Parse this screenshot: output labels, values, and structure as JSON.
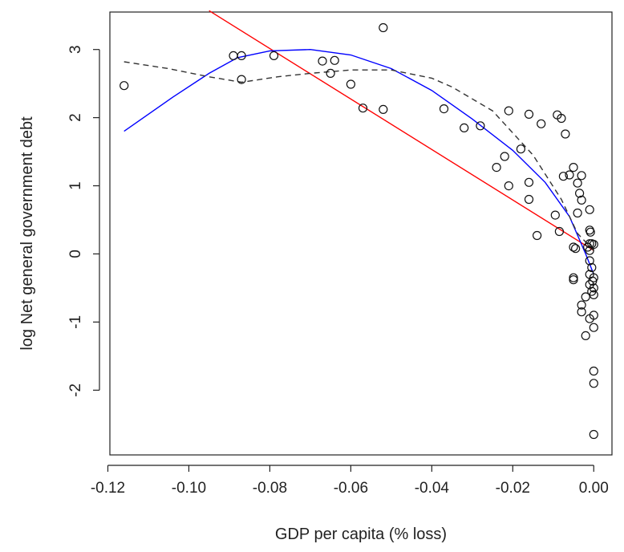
{
  "chart_data": {
    "type": "scatter",
    "title": "",
    "xlabel": "GDP per capita (% loss)",
    "ylabel": "log Net general government debt",
    "xlim": [
      -0.1195,
      0.0045
    ],
    "ylim": [
      -2.95,
      3.55
    ],
    "x_ticks": [
      {
        "value": -0.12,
        "label": "-0.12"
      },
      {
        "value": -0.1,
        "label": "-0.10"
      },
      {
        "value": -0.08,
        "label": "-0.08"
      },
      {
        "value": -0.06,
        "label": "-0.06"
      },
      {
        "value": -0.04,
        "label": "-0.04"
      },
      {
        "value": -0.02,
        "label": "-0.02"
      },
      {
        "value": 0.0,
        "label": "0.00"
      }
    ],
    "y_ticks": [
      {
        "value": -2,
        "label": "-2"
      },
      {
        "value": -1,
        "label": "-1"
      },
      {
        "value": 0,
        "label": "0"
      },
      {
        "value": 1,
        "label": "1"
      },
      {
        "value": 2,
        "label": "2"
      },
      {
        "value": 3,
        "label": "3"
      }
    ],
    "grid": false,
    "legend": "none",
    "points": [
      {
        "x": -0.116,
        "y": 2.47
      },
      {
        "x": -0.089,
        "y": 2.91
      },
      {
        "x": -0.087,
        "y": 2.91
      },
      {
        "x": -0.087,
        "y": 2.56
      },
      {
        "x": -0.079,
        "y": 2.91
      },
      {
        "x": -0.067,
        "y": 2.83
      },
      {
        "x": -0.064,
        "y": 2.84
      },
      {
        "x": -0.065,
        "y": 2.65
      },
      {
        "x": -0.06,
        "y": 2.49
      },
      {
        "x": -0.057,
        "y": 2.14
      },
      {
        "x": -0.052,
        "y": 3.32
      },
      {
        "x": -0.052,
        "y": 2.12
      },
      {
        "x": -0.037,
        "y": 2.13
      },
      {
        "x": -0.032,
        "y": 1.85
      },
      {
        "x": -0.028,
        "y": 1.88
      },
      {
        "x": -0.024,
        "y": 1.27
      },
      {
        "x": -0.022,
        "y": 1.43
      },
      {
        "x": -0.021,
        "y": 2.1
      },
      {
        "x": -0.021,
        "y": 1.0
      },
      {
        "x": -0.018,
        "y": 1.54
      },
      {
        "x": -0.016,
        "y": 2.05
      },
      {
        "x": -0.016,
        "y": 1.05
      },
      {
        "x": -0.016,
        "y": 0.8
      },
      {
        "x": -0.014,
        "y": 0.27
      },
      {
        "x": -0.013,
        "y": 1.91
      },
      {
        "x": -0.0095,
        "y": 0.57
      },
      {
        "x": -0.009,
        "y": 2.04
      },
      {
        "x": -0.0085,
        "y": 0.33
      },
      {
        "x": -0.008,
        "y": 1.99
      },
      {
        "x": -0.0075,
        "y": 1.14
      },
      {
        "x": -0.007,
        "y": 1.76
      },
      {
        "x": -0.006,
        "y": 1.16
      },
      {
        "x": -0.005,
        "y": 1.27
      },
      {
        "x": -0.005,
        "y": 0.1
      },
      {
        "x": -0.005,
        "y": -0.35
      },
      {
        "x": -0.005,
        "y": -0.38
      },
      {
        "x": -0.0045,
        "y": 0.08
      },
      {
        "x": -0.004,
        "y": 1.04
      },
      {
        "x": -0.004,
        "y": 0.6
      },
      {
        "x": -0.0035,
        "y": 0.89
      },
      {
        "x": -0.003,
        "y": 1.15
      },
      {
        "x": -0.003,
        "y": 0.79
      },
      {
        "x": -0.003,
        "y": -0.75
      },
      {
        "x": -0.003,
        "y": -0.85
      },
      {
        "x": -0.002,
        "y": -0.63
      },
      {
        "x": -0.002,
        "y": -1.2
      },
      {
        "x": -0.0015,
        "y": 0.1
      },
      {
        "x": -0.001,
        "y": 0.65
      },
      {
        "x": -0.001,
        "y": 0.35
      },
      {
        "x": -0.001,
        "y": 0.15
      },
      {
        "x": -0.001,
        "y": 0.05
      },
      {
        "x": -0.001,
        "y": -0.1
      },
      {
        "x": -0.001,
        "y": -0.3
      },
      {
        "x": -0.001,
        "y": -0.45
      },
      {
        "x": -0.001,
        "y": -0.95
      },
      {
        "x": -0.0008,
        "y": 0.32
      },
      {
        "x": -0.0005,
        "y": 0.15
      },
      {
        "x": -0.0005,
        "y": -0.2
      },
      {
        "x": -0.0005,
        "y": -0.55
      },
      {
        "x": -0.0003,
        "y": -0.4
      },
      {
        "x": 0.0,
        "y": 0.14
      },
      {
        "x": 0.0,
        "y": -0.35
      },
      {
        "x": 0.0,
        "y": -0.5
      },
      {
        "x": 0.0,
        "y": -0.6
      },
      {
        "x": 0.0,
        "y": -0.9
      },
      {
        "x": 0.0,
        "y": -1.08
      },
      {
        "x": 0.0,
        "y": -1.72
      },
      {
        "x": 0.0,
        "y": -1.9
      },
      {
        "x": 0.0,
        "y": -2.65
      }
    ],
    "lines": [
      {
        "style": "solid",
        "color": "#ff0000",
        "points": [
          {
            "x": -0.095,
            "y": 3.57
          },
          {
            "x": 0.0,
            "y": 0.05
          }
        ]
      },
      {
        "style": "solid",
        "color": "#0000ff",
        "points": [
          {
            "x": -0.116,
            "y": 1.8
          },
          {
            "x": -0.104,
            "y": 2.3
          },
          {
            "x": -0.095,
            "y": 2.65
          },
          {
            "x": -0.088,
            "y": 2.88
          },
          {
            "x": -0.08,
            "y": 2.98
          },
          {
            "x": -0.07,
            "y": 3.0
          },
          {
            "x": -0.06,
            "y": 2.92
          },
          {
            "x": -0.05,
            "y": 2.72
          },
          {
            "x": -0.04,
            "y": 2.4
          },
          {
            "x": -0.03,
            "y": 1.98
          },
          {
            "x": -0.02,
            "y": 1.52
          },
          {
            "x": -0.012,
            "y": 1.05
          },
          {
            "x": -0.006,
            "y": 0.55
          },
          {
            "x": -0.002,
            "y": 0.0
          },
          {
            "x": 0.0,
            "y": -0.3
          }
        ]
      },
      {
        "style": "dashed",
        "color": "#333333",
        "points": [
          {
            "x": -0.116,
            "y": 2.82
          },
          {
            "x": -0.105,
            "y": 2.72
          },
          {
            "x": -0.095,
            "y": 2.6
          },
          {
            "x": -0.087,
            "y": 2.52
          },
          {
            "x": -0.078,
            "y": 2.6
          },
          {
            "x": -0.07,
            "y": 2.65
          },
          {
            "x": -0.06,
            "y": 2.7
          },
          {
            "x": -0.05,
            "y": 2.7
          },
          {
            "x": -0.04,
            "y": 2.58
          },
          {
            "x": -0.035,
            "y": 2.45
          },
          {
            "x": -0.025,
            "y": 2.1
          },
          {
            "x": -0.015,
            "y": 1.45
          },
          {
            "x": -0.008,
            "y": 0.8
          },
          {
            "x": -0.004,
            "y": 0.3
          },
          {
            "x": 0.0,
            "y": 0.05
          }
        ]
      }
    ]
  }
}
